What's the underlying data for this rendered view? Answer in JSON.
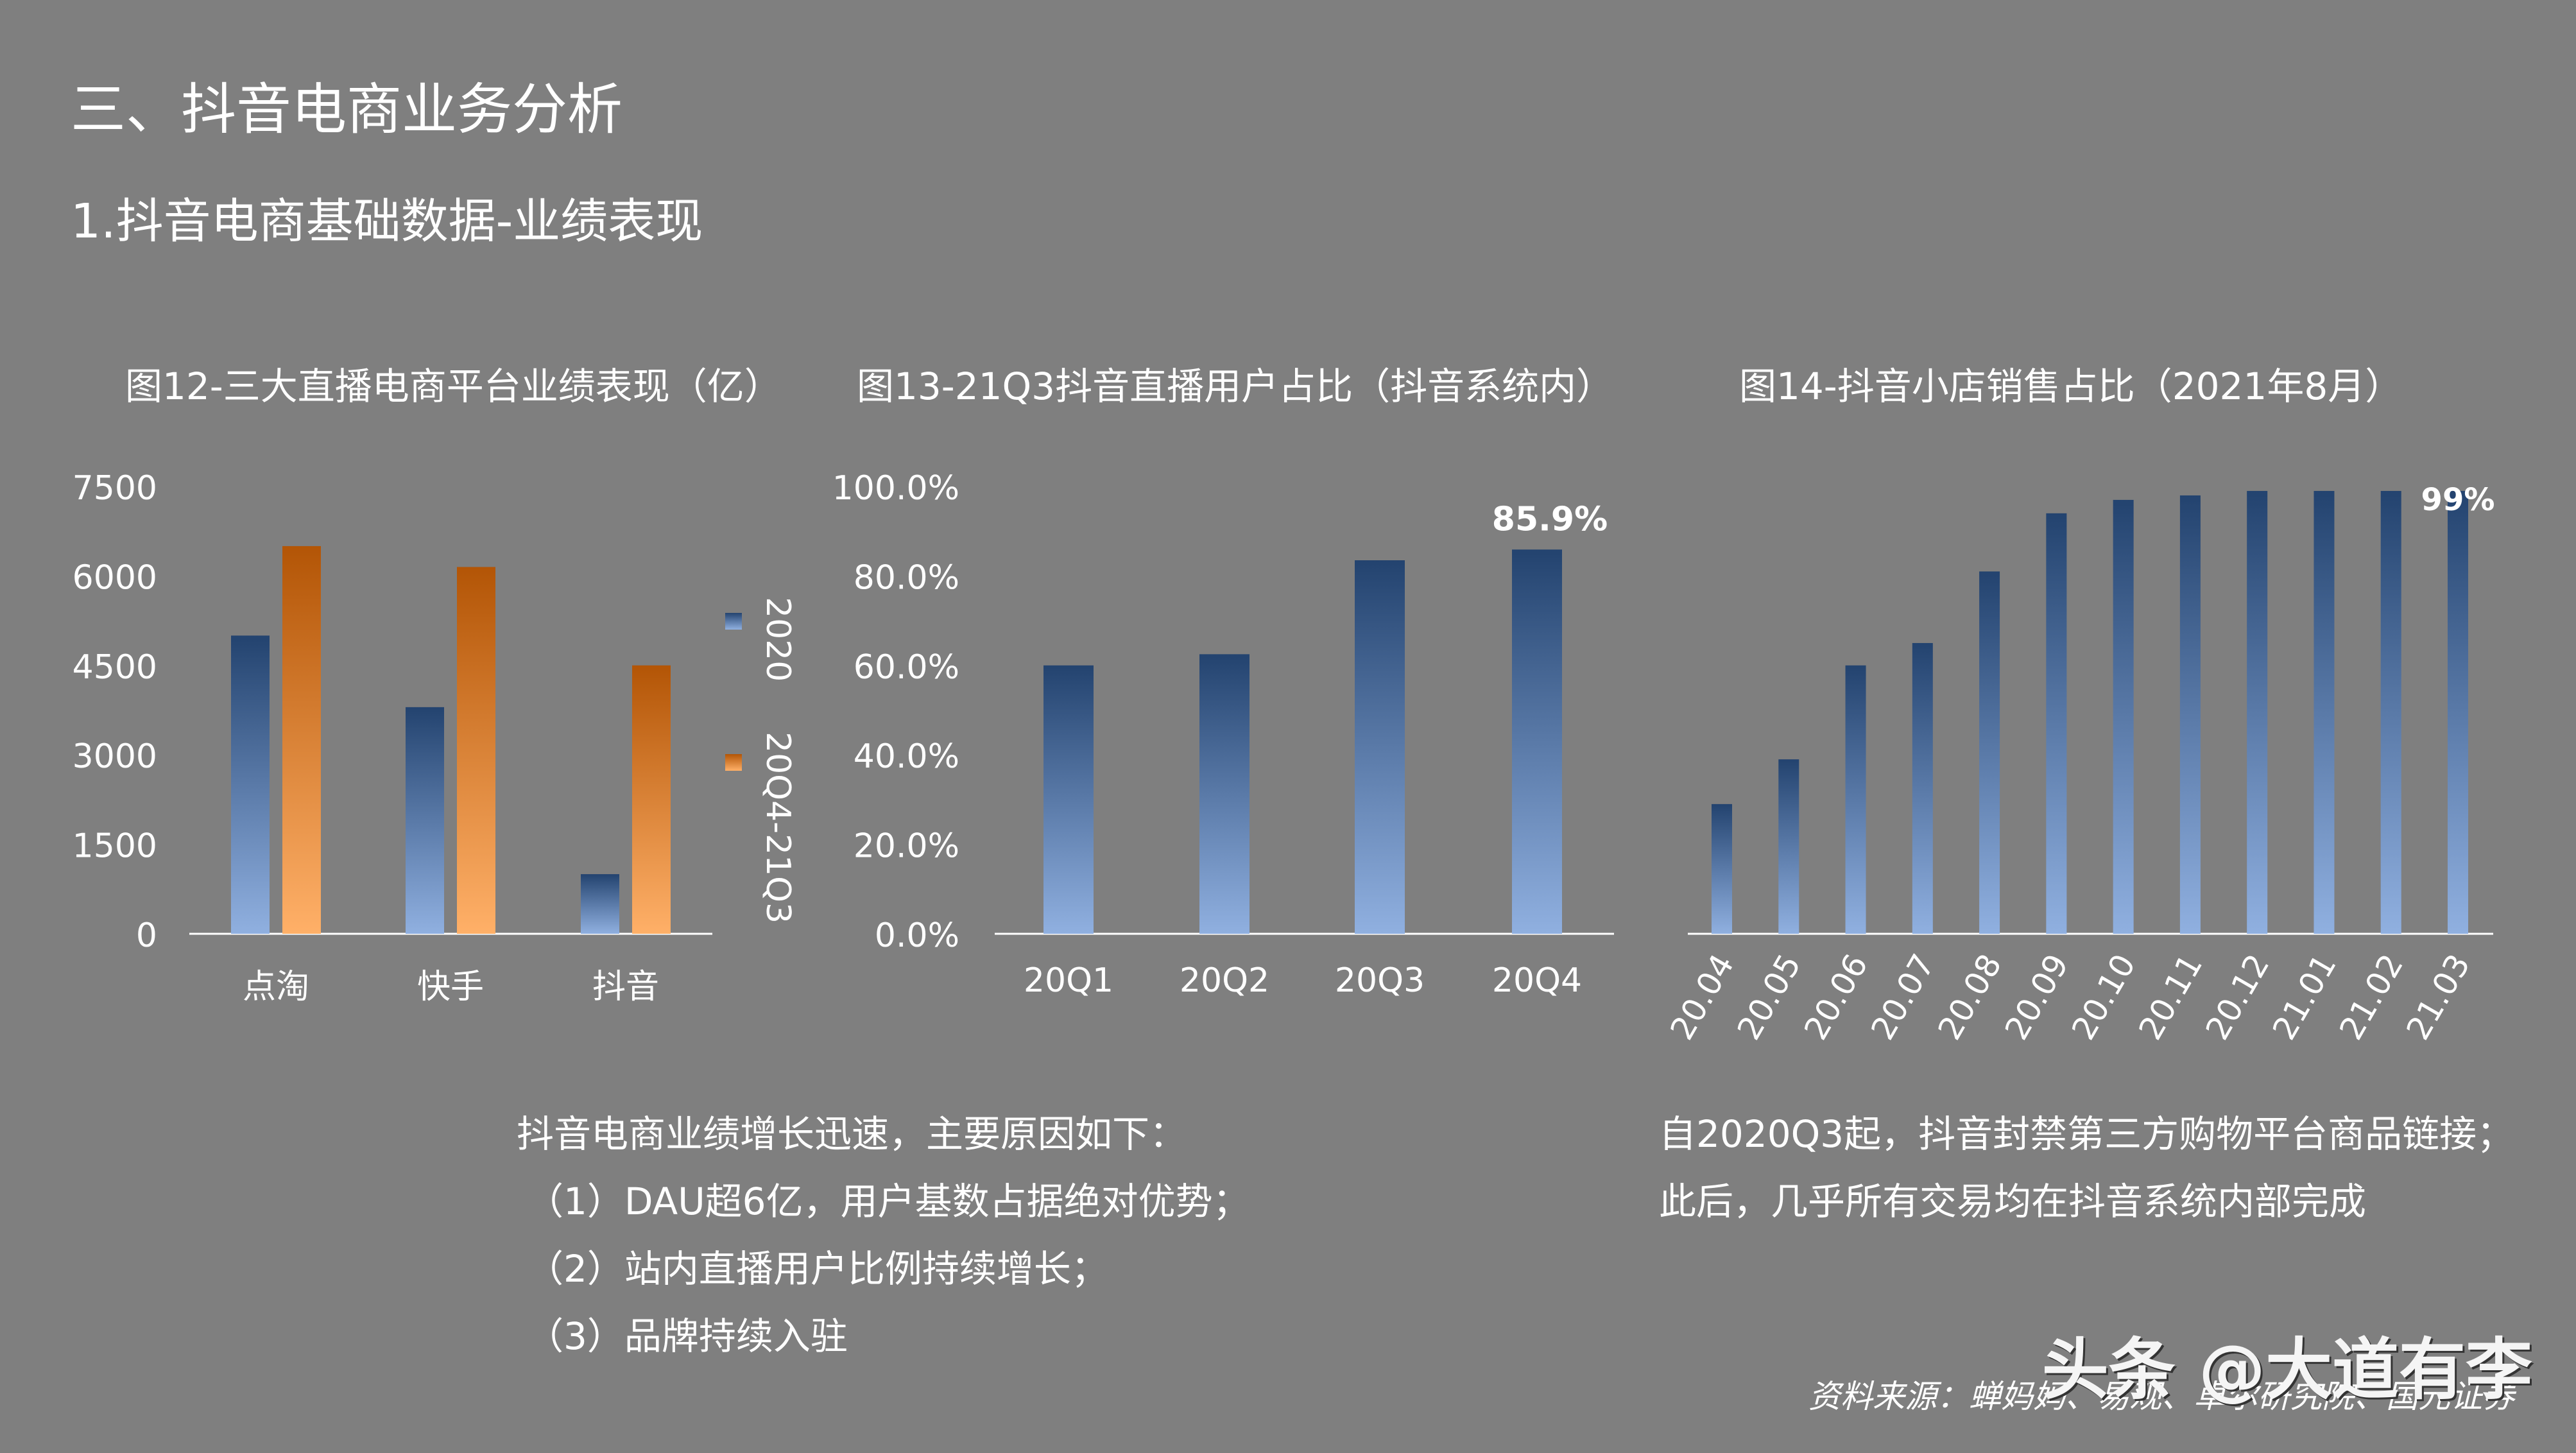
{
  "slide": {
    "title": "三、抖音电商业务分析",
    "subtitle": "1.抖音电商基础数据-业绩表现"
  },
  "colors": {
    "background": "#7f7f7f",
    "blue_top": "#23436f",
    "blue_bottom": "#90b0e0",
    "orange_top": "#b35506",
    "orange_bottom": "#ffb068",
    "axis": "#ffffff"
  },
  "chart_data": [
    {
      "type": "bar",
      "title": "图12-三大直播电商平台业绩表现（亿）",
      "categories": [
        "点淘",
        "快手",
        "抖音"
      ],
      "series": [
        {
          "name": "2020",
          "values": [
            5000,
            3800,
            1000
          ]
        },
        {
          "name": "20Q4-21Q3",
          "values": [
            6500,
            6150,
            4500
          ]
        }
      ],
      "yticks": [
        "0",
        "1500",
        "3000",
        "4500",
        "6000",
        "7500"
      ],
      "ylim": [
        0,
        7500
      ],
      "legend": "right",
      "grid": false
    },
    {
      "type": "bar",
      "title": "图13-21Q3抖音直播用户占比（抖音系统内）",
      "categories": [
        "20Q1",
        "20Q2",
        "20Q3",
        "20Q4"
      ],
      "values": [
        60.0,
        62.5,
        83.5,
        85.9
      ],
      "data_labels": [
        "",
        "",
        "",
        "85.9%"
      ],
      "yticks": [
        "0.0%",
        "20.0%",
        "40.0%",
        "60.0%",
        "80.0%",
        "100.0%"
      ],
      "ylim": [
        0,
        100
      ],
      "grid": false
    },
    {
      "type": "bar",
      "title": "图14-抖音小店销售占比（2021年8月）",
      "categories": [
        "20.04",
        "20.05",
        "20.06",
        "20.07",
        "20.08",
        "20.09",
        "20.10",
        "20.11",
        "20.12",
        "21.01",
        "21.02",
        "21.03"
      ],
      "values": [
        29,
        39,
        60,
        65,
        81,
        94,
        97,
        98,
        99,
        99,
        99,
        99
      ],
      "data_labels": [
        "",
        "",
        "",
        "",
        "",
        "",
        "",
        "",
        "",
        "",
        "",
        "99%"
      ],
      "ylim": [
        0,
        100
      ],
      "grid": false
    }
  ],
  "notes": {
    "left": {
      "heading": "抖音电商业绩增长迅速，主要原因如下：",
      "items": [
        "（1）DAU超6亿，用户基数占据绝对优势；",
        "（2）站内直播用户比例持续增长；",
        "（3）品牌持续入驻"
      ]
    },
    "right": {
      "lines": [
        "自2020Q3起，抖音封禁第三方购物平台商品链接；",
        "此后，几乎所有交易均在抖音系统内部完成"
      ]
    }
  },
  "source": "资料来源：蝉妈妈、易观、卓尔研究院、国元证券",
  "watermark": "头条 @大道有李"
}
